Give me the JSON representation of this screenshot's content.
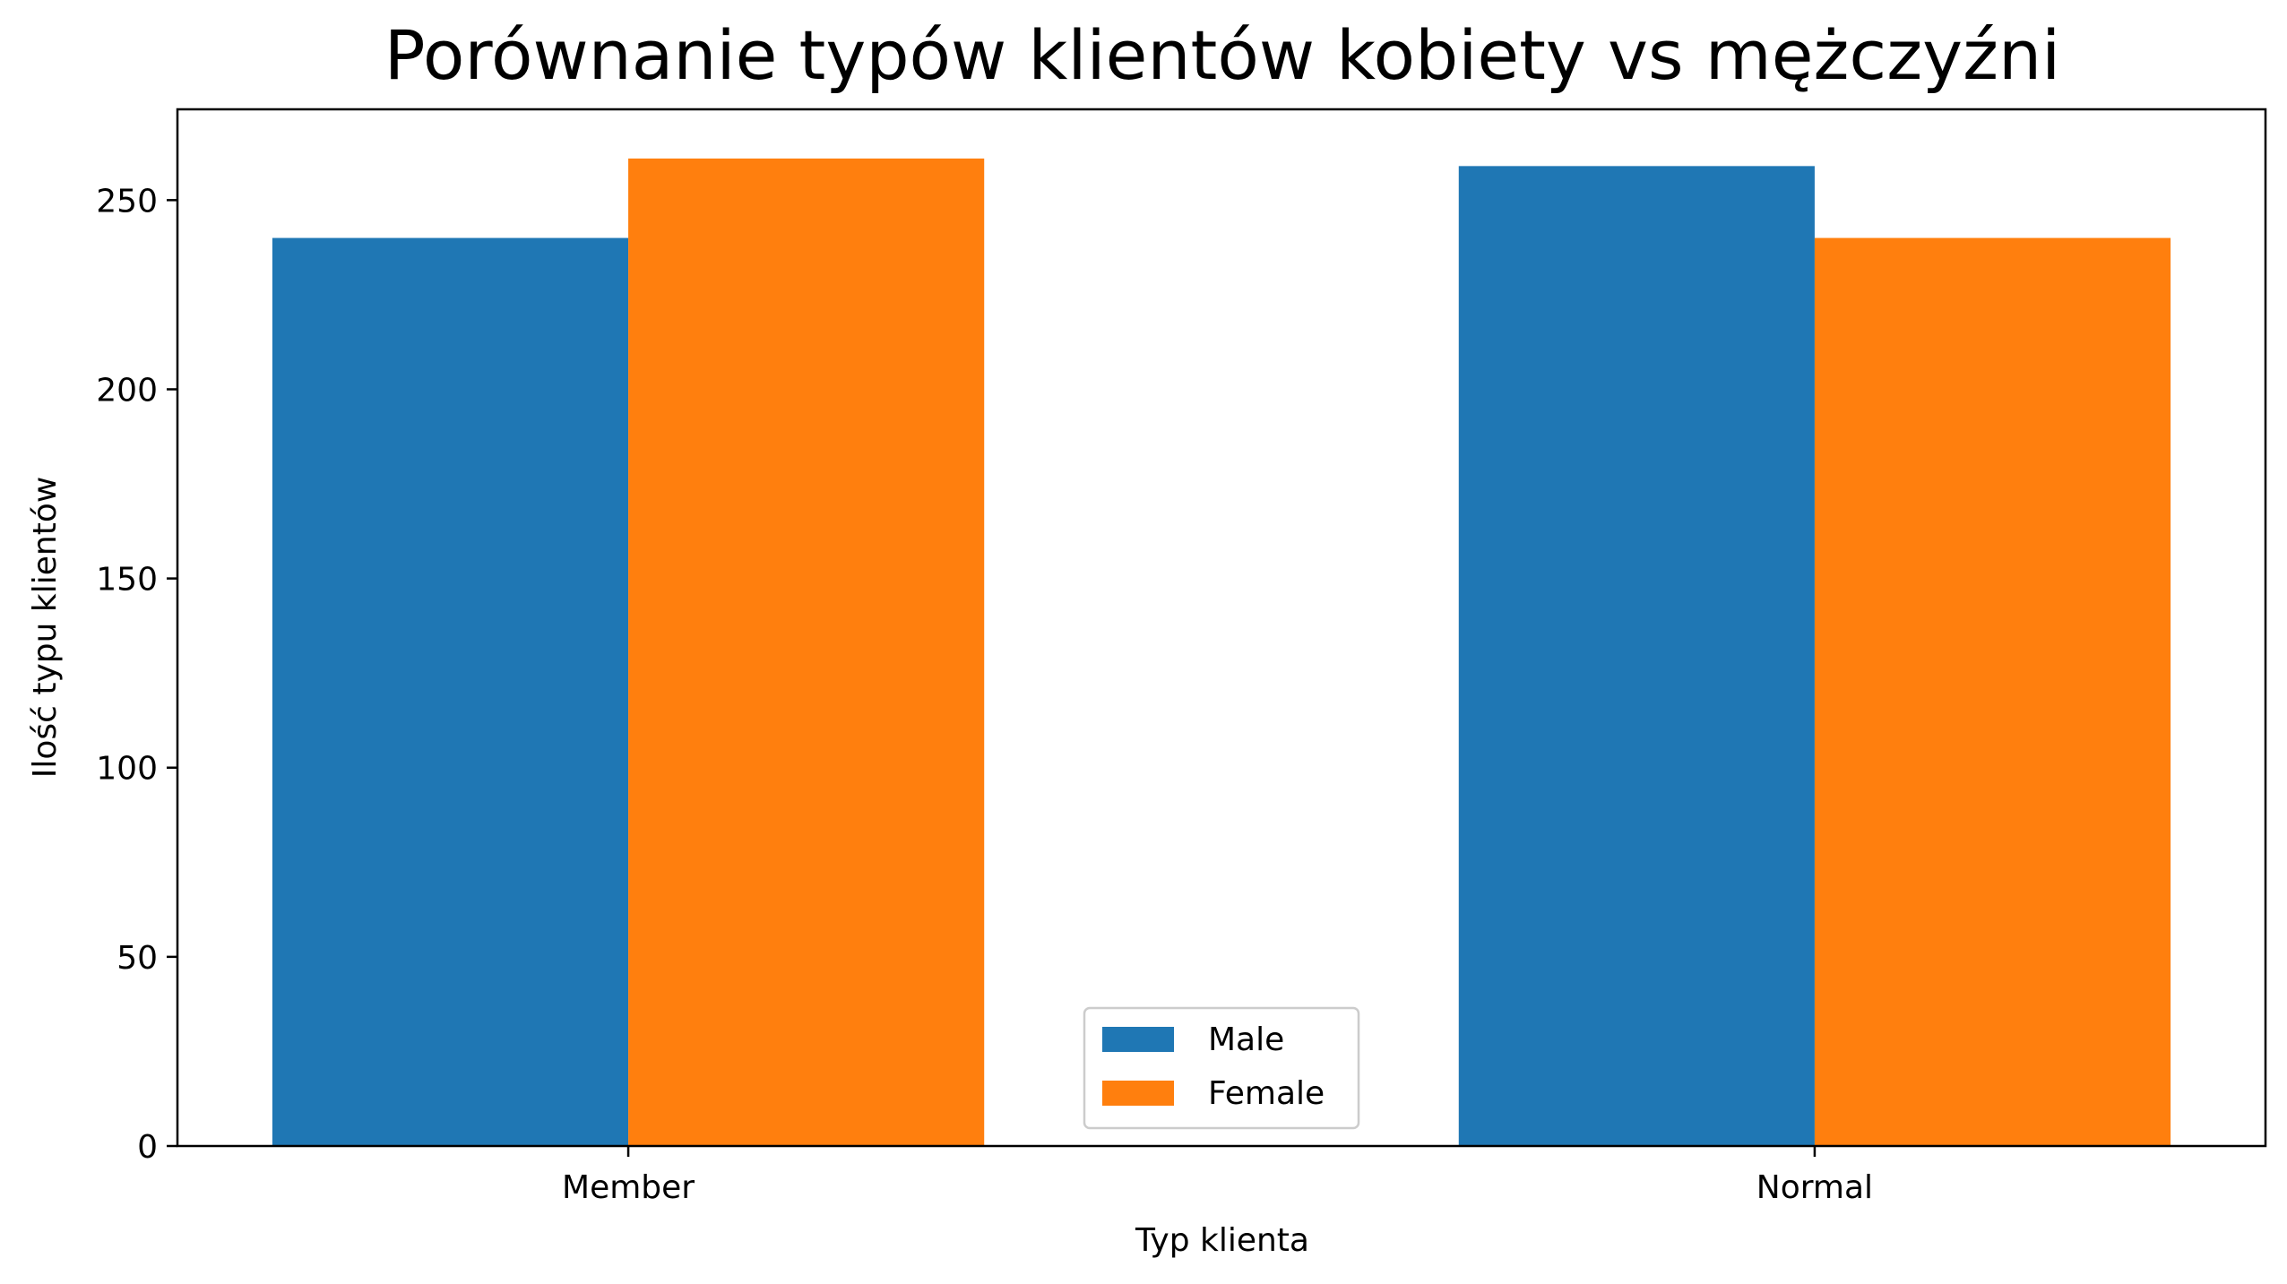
{
  "chart_data": {
    "type": "bar",
    "title": "Porównanie typów klientów kobiety vs mężczyźni",
    "xlabel": "Typ klienta",
    "ylabel": "Ilość typu klientów",
    "categories": [
      "Member",
      "Normal"
    ],
    "series": [
      {
        "name": "Male",
        "values": [
          240,
          259
        ],
        "color": "#1f77b4"
      },
      {
        "name": "Female",
        "values": [
          261,
          240
        ],
        "color": "#ff7f0e"
      }
    ],
    "ylim": [
      0,
      274
    ],
    "yticks": [
      0,
      50,
      100,
      150,
      200,
      250
    ],
    "grid": false,
    "legend_position": "lower center"
  }
}
